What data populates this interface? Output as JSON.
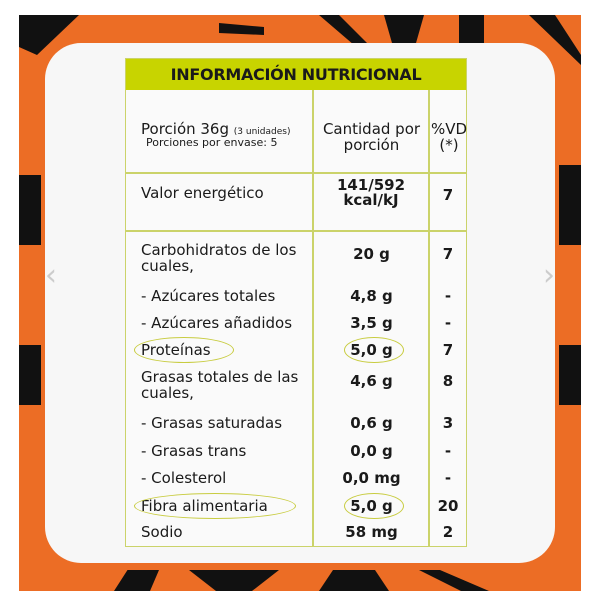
{
  "label": {
    "title": "INFORMACIÓN NUTRICIONAL",
    "header": {
      "portion": "Porción 36g",
      "portion_units": "(3 unidades)",
      "servings": "Porciones por envase: 5",
      "amount": "Cantidad por porción",
      "dv": "%VD (*)"
    },
    "rows": [
      {
        "name": "Valor energético",
        "amount": "141/592 kcal/kJ",
        "dv": "7"
      },
      {
        "name": "Carbohidratos de los cuales,",
        "amount": "20 g",
        "dv": "7"
      },
      {
        "name": "- Azúcares totales",
        "amount": "4,8 g",
        "dv": "-"
      },
      {
        "name": "- Azúcares añadidos",
        "amount": "3,5 g",
        "dv": "-"
      },
      {
        "name": "Proteínas",
        "amount": "5,0 g",
        "dv": "7",
        "highlighted": true
      },
      {
        "name": "Grasas totales de las cuales,",
        "amount": "4,6 g",
        "dv": "8"
      },
      {
        "name": "- Grasas saturadas",
        "amount": "0,6 g",
        "dv": "3"
      },
      {
        "name": "- Grasas trans",
        "amount": "0,0 g",
        "dv": "-"
      },
      {
        "name": "- Colesterol",
        "amount": "0,0 mg",
        "dv": "-"
      },
      {
        "name": "Fibra alimentaria",
        "amount": "5,0 g",
        "dv": "20",
        "highlighted": true
      },
      {
        "name": "Sodio",
        "amount": "58 mg",
        "dv": "2"
      }
    ]
  },
  "carousel": {
    "prev_icon": "chevron-left-icon",
    "next_icon": "chevron-right-icon"
  },
  "colors": {
    "frame": "#ec6d25",
    "header": "#c8d400",
    "highlight": "#c8cc40"
  }
}
